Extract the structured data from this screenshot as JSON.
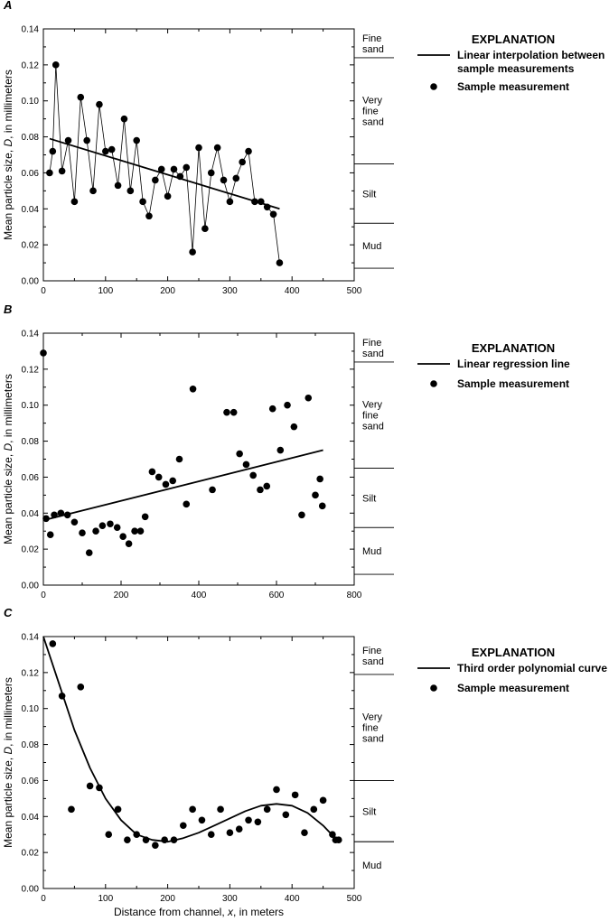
{
  "chart_data": [
    {
      "panel_label": "A",
      "type": "scatter",
      "ylabel_prefix": "Mean particle size, ",
      "ylabel_var": "D",
      "ylabel_suffix": ", in millimeters",
      "xlim": [
        0,
        500
      ],
      "ylim": [
        0,
        0.14
      ],
      "xticks": [
        "0",
        "100",
        "200",
        "300",
        "400",
        "500"
      ],
      "yticks": [
        "0.00",
        "0.02",
        "0.04",
        "0.06",
        "0.08",
        "0.10",
        "0.12",
        "0.14"
      ],
      "zones": [
        {
          "label": "Fine\nsand",
          "top": 0.14,
          "bottom": 0.124
        },
        {
          "label": "Very\nfine\nsand",
          "top": 0.124,
          "bottom": 0.065
        },
        {
          "label": "Silt",
          "top": 0.065,
          "bottom": 0.032
        },
        {
          "label": "Mud",
          "top": 0.032,
          "bottom": 0.007
        }
      ],
      "explanation": {
        "title": "EXPLANATION",
        "line_label": "Linear interpolation between sample measurements",
        "point_label": "Sample measurement"
      },
      "connect_points": true,
      "fit_line": {
        "x": [
          10,
          380
        ],
        "y": [
          0.079,
          0.04
        ]
      },
      "points": [
        [
          10,
          0.06
        ],
        [
          15,
          0.072
        ],
        [
          20,
          0.12
        ],
        [
          30,
          0.061
        ],
        [
          40,
          0.078
        ],
        [
          50,
          0.044
        ],
        [
          60,
          0.102
        ],
        [
          70,
          0.078
        ],
        [
          80,
          0.05
        ],
        [
          90,
          0.098
        ],
        [
          100,
          0.072
        ],
        [
          110,
          0.073
        ],
        [
          120,
          0.053
        ],
        [
          130,
          0.09
        ],
        [
          140,
          0.05
        ],
        [
          150,
          0.078
        ],
        [
          160,
          0.044
        ],
        [
          170,
          0.036
        ],
        [
          180,
          0.056
        ],
        [
          190,
          0.062
        ],
        [
          200,
          0.047
        ],
        [
          210,
          0.062
        ],
        [
          220,
          0.058
        ],
        [
          230,
          0.063
        ],
        [
          240,
          0.016
        ],
        [
          250,
          0.074
        ],
        [
          260,
          0.029
        ],
        [
          270,
          0.06
        ],
        [
          280,
          0.074
        ],
        [
          290,
          0.056
        ],
        [
          300,
          0.044
        ],
        [
          310,
          0.057
        ],
        [
          320,
          0.066
        ],
        [
          330,
          0.072
        ],
        [
          340,
          0.044
        ],
        [
          350,
          0.044
        ],
        [
          360,
          0.041
        ],
        [
          370,
          0.037
        ],
        [
          380,
          0.01
        ]
      ]
    },
    {
      "panel_label": "B",
      "type": "scatter",
      "ylabel_prefix": "Mean particle size, ",
      "ylabel_var": "D",
      "ylabel_suffix": ", in millimeters",
      "xlim": [
        0,
        800
      ],
      "ylim": [
        0,
        0.14
      ],
      "xticks": [
        "0",
        "200",
        "400",
        "600",
        "800"
      ],
      "yticks": [
        "0.00",
        "0.02",
        "0.04",
        "0.06",
        "0.08",
        "0.10",
        "0.12",
        "0.14"
      ],
      "zones": [
        {
          "label": "Fine\nsand",
          "top": 0.14,
          "bottom": 0.124
        },
        {
          "label": "Very\nfine\nsand",
          "top": 0.124,
          "bottom": 0.065
        },
        {
          "label": "Silt",
          "top": 0.065,
          "bottom": 0.032
        },
        {
          "label": "Mud",
          "top": 0.032,
          "bottom": 0.006
        }
      ],
      "explanation": {
        "title": "EXPLANATION",
        "line_label": "Linear regression line",
        "point_label": "Sample measurement"
      },
      "connect_points": false,
      "fit_line": {
        "x": [
          0,
          720
        ],
        "y": [
          0.036,
          0.075
        ]
      },
      "points": [
        [
          0,
          0.129
        ],
        [
          7,
          0.037
        ],
        [
          18,
          0.028
        ],
        [
          28,
          0.039
        ],
        [
          45,
          0.04
        ],
        [
          62,
          0.039
        ],
        [
          80,
          0.035
        ],
        [
          100,
          0.029
        ],
        [
          118,
          0.018
        ],
        [
          135,
          0.03
        ],
        [
          152,
          0.033
        ],
        [
          172,
          0.034
        ],
        [
          190,
          0.032
        ],
        [
          205,
          0.027
        ],
        [
          220,
          0.023
        ],
        [
          235,
          0.03
        ],
        [
          250,
          0.03
        ],
        [
          262,
          0.038
        ],
        [
          280,
          0.063
        ],
        [
          297,
          0.06
        ],
        [
          315,
          0.056
        ],
        [
          333,
          0.058
        ],
        [
          350,
          0.07
        ],
        [
          368,
          0.045
        ],
        [
          385,
          0.109
        ],
        [
          435,
          0.053
        ],
        [
          472,
          0.096
        ],
        [
          490,
          0.096
        ],
        [
          505,
          0.073
        ],
        [
          522,
          0.067
        ],
        [
          540,
          0.061
        ],
        [
          558,
          0.053
        ],
        [
          575,
          0.055
        ],
        [
          590,
          0.098
        ],
        [
          610,
          0.075
        ],
        [
          628,
          0.1
        ],
        [
          645,
          0.088
        ],
        [
          665,
          0.039
        ],
        [
          682,
          0.104
        ],
        [
          700,
          0.05
        ],
        [
          712,
          0.059
        ],
        [
          718,
          0.044
        ]
      ]
    },
    {
      "panel_label": "C",
      "type": "scatter",
      "ylabel_prefix": "Mean particle size, ",
      "ylabel_var": "D",
      "ylabel_suffix": ", in millimeters",
      "xlabel_prefix": "Distance from channel, ",
      "xlabel_var": "x",
      "xlabel_suffix": ", in meters",
      "xlim": [
        0,
        500
      ],
      "ylim": [
        0,
        0.14
      ],
      "xticks": [
        "0",
        "100",
        "200",
        "300",
        "400",
        "500"
      ],
      "yticks": [
        "0.00",
        "0.02",
        "0.04",
        "0.06",
        "0.08",
        "0.10",
        "0.12",
        "0.14"
      ],
      "zones": [
        {
          "label": "Fine\nsand",
          "top": 0.14,
          "bottom": 0.119
        },
        {
          "label": "Very\nfine\nsand",
          "top": 0.119,
          "bottom": 0.06
        },
        {
          "label": "Silt",
          "top": 0.06,
          "bottom": 0.026
        },
        {
          "label": "Mud",
          "top": 0.026,
          "bottom": 0.0
        }
      ],
      "explanation": {
        "title": "EXPLANATION",
        "line_label": "Third order polynomial curve",
        "point_label": "Sample measurement"
      },
      "connect_points": false,
      "curve": {
        "x": [
          0,
          25,
          50,
          75,
          100,
          125,
          150,
          175,
          200,
          225,
          250,
          275,
          300,
          325,
          350,
          375,
          400,
          425,
          450,
          475
        ],
        "y": [
          0.14,
          0.114,
          0.088,
          0.067,
          0.05,
          0.038,
          0.03,
          0.027,
          0.026,
          0.028,
          0.031,
          0.035,
          0.039,
          0.043,
          0.046,
          0.047,
          0.046,
          0.042,
          0.035,
          0.026
        ]
      },
      "points": [
        [
          15,
          0.136
        ],
        [
          30,
          0.107
        ],
        [
          45,
          0.044
        ],
        [
          60,
          0.112
        ],
        [
          75,
          0.057
        ],
        [
          90,
          0.056
        ],
        [
          105,
          0.03
        ],
        [
          120,
          0.044
        ],
        [
          135,
          0.027
        ],
        [
          150,
          0.03
        ],
        [
          165,
          0.027
        ],
        [
          180,
          0.024
        ],
        [
          195,
          0.027
        ],
        [
          210,
          0.027
        ],
        [
          225,
          0.035
        ],
        [
          240,
          0.044
        ],
        [
          255,
          0.038
        ],
        [
          270,
          0.03
        ],
        [
          285,
          0.044
        ],
        [
          300,
          0.031
        ],
        [
          315,
          0.033
        ],
        [
          330,
          0.038
        ],
        [
          345,
          0.037
        ],
        [
          360,
          0.044
        ],
        [
          375,
          0.055
        ],
        [
          390,
          0.041
        ],
        [
          405,
          0.052
        ],
        [
          420,
          0.031
        ],
        [
          435,
          0.044
        ],
        [
          450,
          0.049
        ],
        [
          465,
          0.03
        ],
        [
          470,
          0.027
        ],
        [
          475,
          0.027
        ]
      ]
    }
  ]
}
